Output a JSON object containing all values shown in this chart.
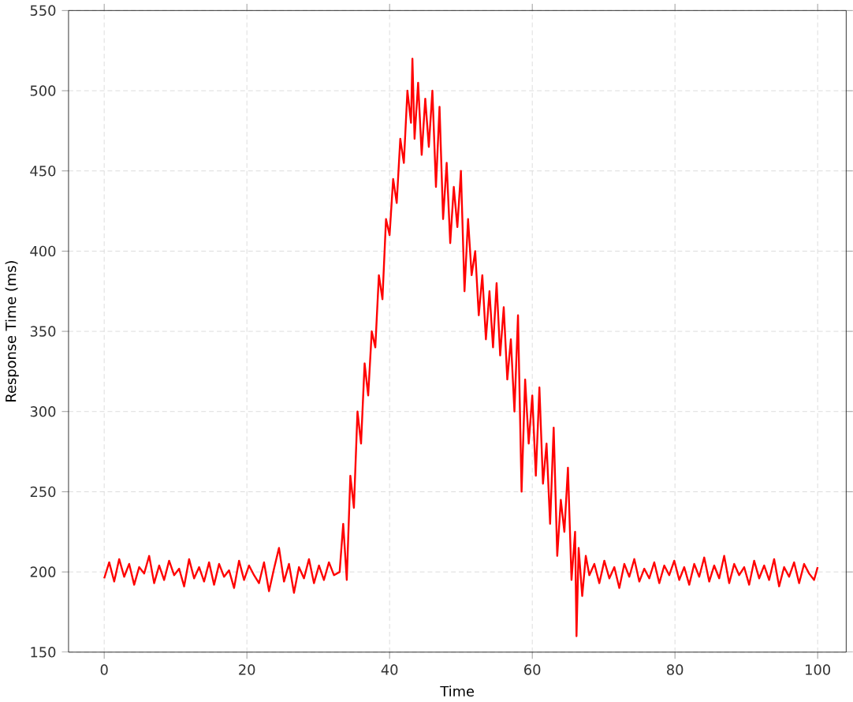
{
  "chart_data": {
    "type": "line",
    "xlabel": "Time",
    "ylabel": "Response Time (ms)",
    "xlim": [
      -5,
      104
    ],
    "ylim": [
      150,
      550
    ],
    "xticks": [
      0,
      20,
      40,
      60,
      80,
      100
    ],
    "yticks": [
      150,
      200,
      250,
      300,
      350,
      400,
      450,
      500,
      550
    ],
    "grid": true,
    "line_style": "solid",
    "series": [
      {
        "color": "#ff0000",
        "x": [
          0,
          0.7,
          1.4,
          2.1,
          2.8,
          3.5,
          4.2,
          4.9,
          5.6,
          6.3,
          7,
          7.7,
          8.4,
          9.1,
          9.8,
          10.5,
          11.2,
          11.9,
          12.6,
          13.3,
          14,
          14.7,
          15.4,
          16.1,
          16.8,
          17.5,
          18.2,
          18.9,
          19.6,
          20.3,
          21,
          21.7,
          22.4,
          23.1,
          23.8,
          24.5,
          25.2,
          25.9,
          26.6,
          27.3,
          28,
          28.7,
          29.4,
          30.1,
          30.8,
          31.5,
          32.2,
          33,
          33.5,
          34,
          34.5,
          35,
          35.5,
          36,
          36.5,
          37,
          37.5,
          38,
          38.5,
          39,
          39.5,
          40,
          40.5,
          41,
          41.5,
          42,
          42.5,
          43,
          43.2,
          43.5,
          44,
          44.5,
          45,
          45.5,
          46,
          46.5,
          47,
          47.5,
          48,
          48.5,
          49,
          49.5,
          50,
          50.5,
          51,
          51.5,
          52,
          52.5,
          53,
          53.5,
          54,
          54.5,
          55,
          55.5,
          56,
          56.5,
          57,
          57.5,
          58,
          58.5,
          59,
          59.5,
          60,
          60.5,
          61,
          61.5,
          62,
          62.5,
          63,
          63.5,
          64,
          64.5,
          65,
          65.5,
          66,
          66.2,
          66.5,
          67,
          67.5,
          68,
          68.7,
          69.4,
          70.1,
          70.8,
          71.5,
          72.2,
          72.9,
          73.6,
          74.3,
          75,
          75.7,
          76.4,
          77.1,
          77.8,
          78.5,
          79.2,
          79.9,
          80.6,
          81.3,
          82,
          82.7,
          83.4,
          84.1,
          84.8,
          85.5,
          86.2,
          86.9,
          87.6,
          88.3,
          89,
          89.7,
          90.4,
          91.1,
          91.8,
          92.5,
          93.2,
          93.9,
          94.6,
          95.3,
          96,
          96.7,
          97.4,
          98.1,
          98.8,
          99.5,
          100
        ],
        "values": [
          196,
          206,
          194,
          208,
          197,
          205,
          192,
          203,
          199,
          210,
          193,
          204,
          195,
          207,
          198,
          202,
          191,
          208,
          196,
          203,
          194,
          206,
          192,
          205,
          197,
          201,
          190,
          207,
          195,
          204,
          198,
          193,
          206,
          188,
          202,
          215,
          194,
          205,
          187,
          203,
          196,
          208,
          193,
          204,
          195,
          206,
          198,
          200,
          230,
          195,
          260,
          240,
          300,
          280,
          330,
          310,
          350,
          340,
          385,
          370,
          420,
          410,
          445,
          430,
          470,
          455,
          500,
          480,
          520,
          470,
          505,
          460,
          495,
          465,
          500,
          440,
          490,
          420,
          455,
          405,
          440,
          415,
          450,
          375,
          420,
          385,
          400,
          360,
          385,
          345,
          375,
          340,
          380,
          335,
          365,
          320,
          345,
          300,
          360,
          250,
          320,
          280,
          310,
          260,
          315,
          255,
          280,
          230,
          290,
          210,
          245,
          225,
          265,
          195,
          225,
          160,
          215,
          185,
          210,
          198,
          205,
          193,
          207,
          196,
          203,
          190,
          205,
          197,
          208,
          194,
          202,
          196,
          206,
          193,
          204,
          198,
          207,
          195,
          203,
          192,
          205,
          197,
          209,
          194,
          204,
          196,
          210,
          193,
          205,
          198,
          203,
          192,
          207,
          196,
          204,
          195,
          208,
          191,
          203,
          197,
          206,
          193,
          205,
          199,
          195,
          203
        ]
      }
    ]
  }
}
